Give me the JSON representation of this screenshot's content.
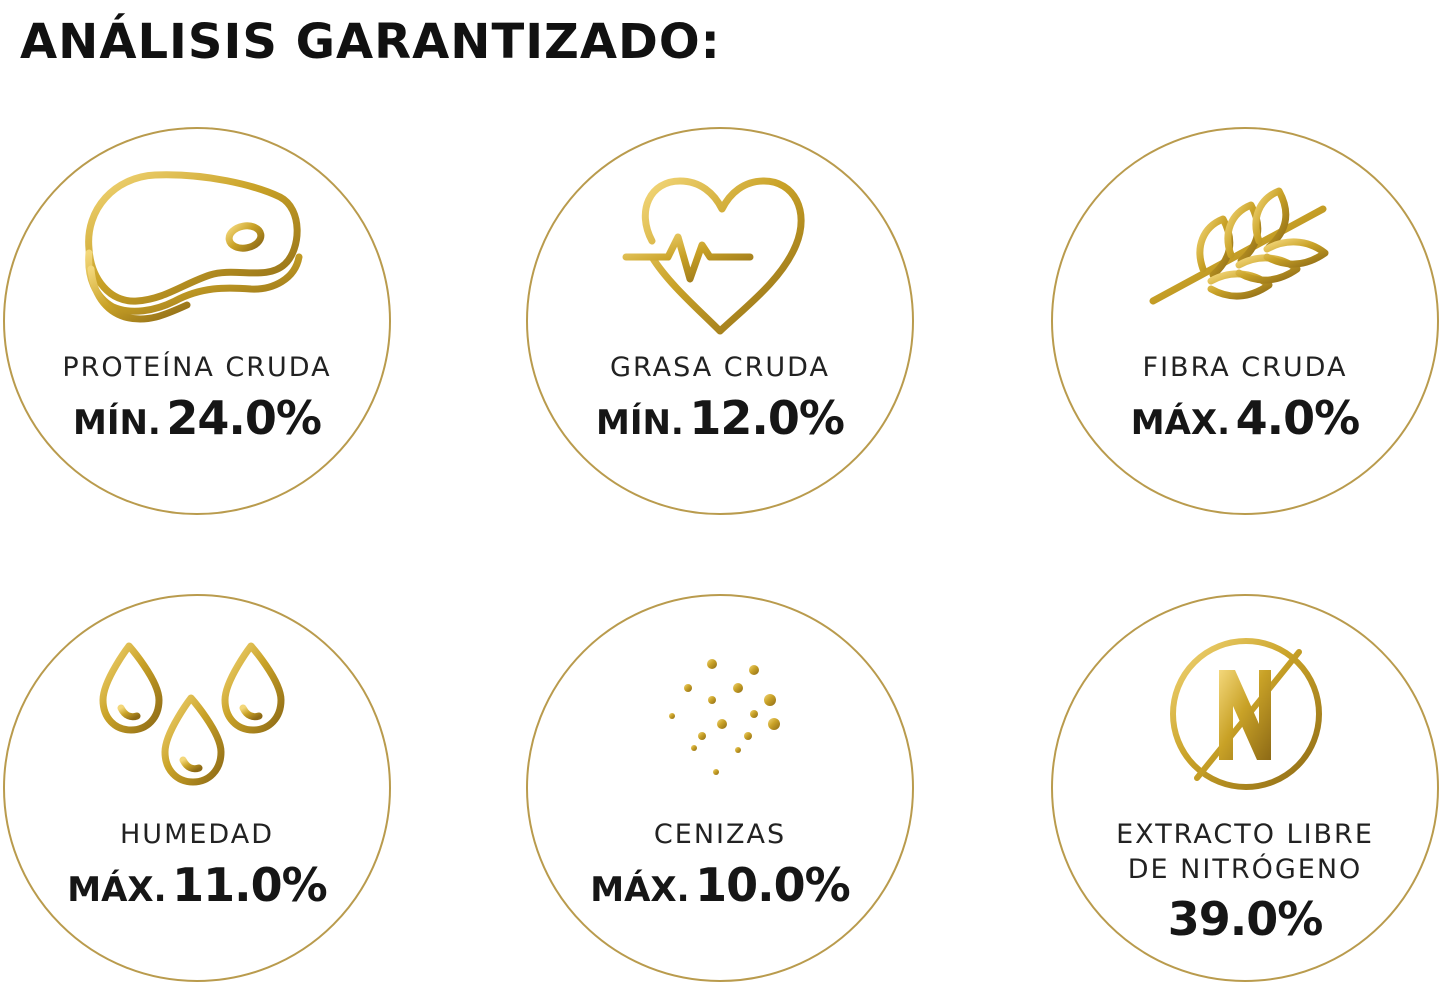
{
  "title": "ANÁLISIS GARANTIZADO:",
  "nutrients": [
    {
      "name": "PROTEÍNA CRUDA",
      "qualifier": "MÍN.",
      "value": "24.0%",
      "icon": "meat-icon"
    },
    {
      "name": "GRASA CRUDA",
      "qualifier": "MÍN.",
      "value": "12.0%",
      "icon": "heart-pulse-icon"
    },
    {
      "name": "FIBRA CRUDA",
      "qualifier": "MÁX.",
      "value": "4.0%",
      "icon": "wheat-icon"
    },
    {
      "name": "HUMEDAD",
      "qualifier": "MÁX.",
      "value": "11.0%",
      "icon": "water-drops-icon"
    },
    {
      "name": "CENIZAS",
      "qualifier": "MÁX.",
      "value": "10.0%",
      "icon": "ash-dots-icon"
    },
    {
      "name_line1": "EXTRACTO LIBRE",
      "name_line2": "DE NITRÓGENO",
      "value": "39.0%",
      "icon": "nitrogen-free-icon"
    }
  ],
  "colors": {
    "gold": "#c9a227",
    "gold_dark": "#9c7a1c",
    "ring": "#b99b4d",
    "text": "#1a1a1a"
  }
}
